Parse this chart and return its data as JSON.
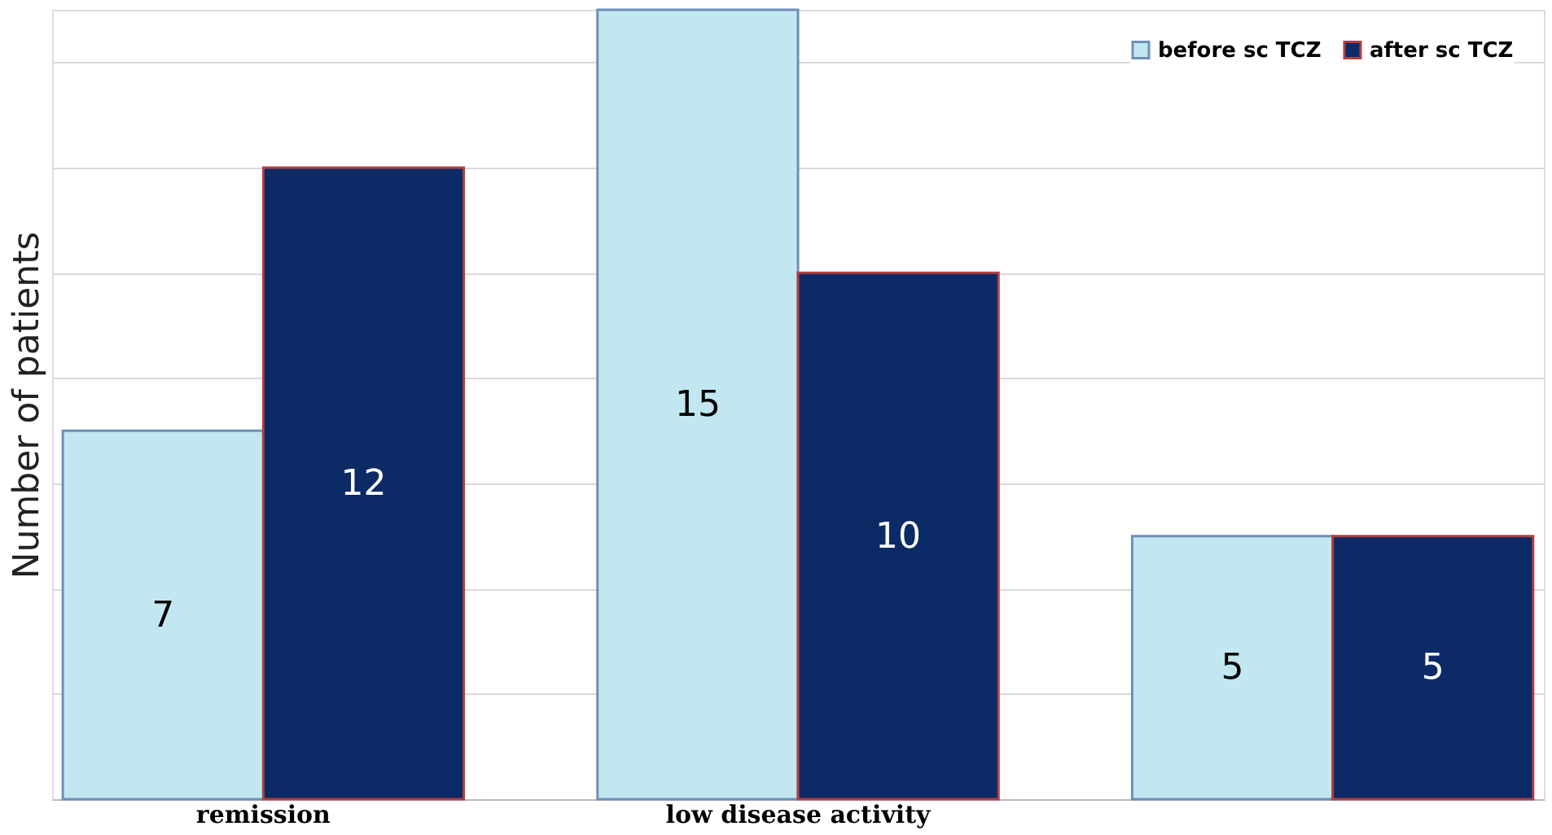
{
  "chart_data": {
    "type": "bar",
    "ylabel": "Number of patients",
    "categories": [
      "remission",
      "low disease activity",
      null
    ],
    "series": [
      {
        "name": "before sc TCZ",
        "color": "#c2e7f1",
        "values": [
          7,
          15,
          5
        ]
      },
      {
        "name": "after sc TCZ",
        "color": "#0c2a66",
        "values": [
          12,
          10,
          5
        ]
      }
    ],
    "ylim": [
      0,
      15
    ],
    "yticks": [
      {
        "value": 0,
        "label": null
      },
      {
        "value": 2,
        "label": null
      },
      {
        "value": 4,
        "label": null
      },
      {
        "value": 6,
        "label": null
      },
      {
        "value": 8,
        "label": null
      },
      {
        "value": 10,
        "label": null
      },
      {
        "value": 12,
        "label": null
      },
      {
        "value": 14,
        "label": null
      }
    ],
    "tick_labels": "x",
    "grid": "y",
    "legend": "top right",
    "data_labels": true
  }
}
